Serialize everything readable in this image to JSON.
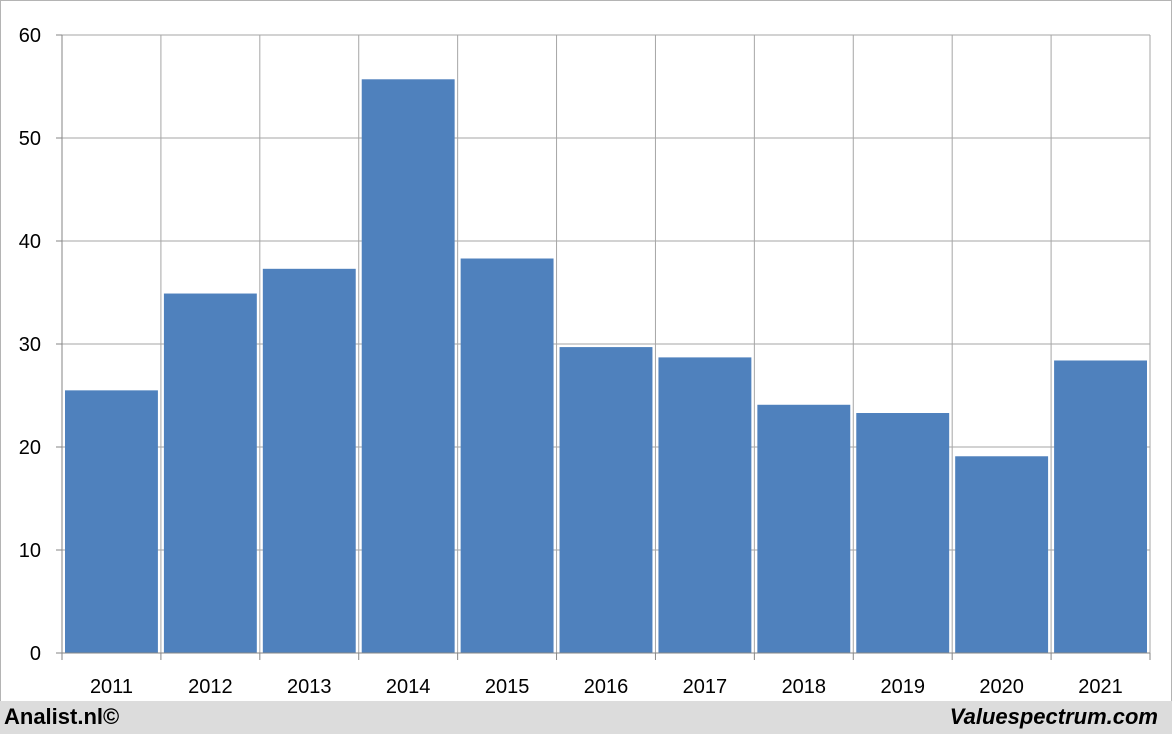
{
  "chart_data": {
    "type": "bar",
    "title": "",
    "xlabel": "",
    "ylabel": "",
    "categories": [
      "2011",
      "2012",
      "2013",
      "2014",
      "2015",
      "2016",
      "2017",
      "2018",
      "2019",
      "2020",
      "2021"
    ],
    "values": [
      25.5,
      34.9,
      37.3,
      55.7,
      38.3,
      29.7,
      28.7,
      24.1,
      23.3,
      19.1,
      28.4
    ],
    "ylim": [
      0,
      60
    ],
    "yticks": [
      "0",
      "10",
      "20",
      "30",
      "40",
      "50",
      "60"
    ],
    "grid": true,
    "legend": "none",
    "colors": {
      "bar": "#4f81bd",
      "grid": "#a6a6a6",
      "axis": "#868686"
    }
  },
  "footer": {
    "left_text": "Analist.nl©",
    "right_text": "Valuespectrum.com"
  }
}
